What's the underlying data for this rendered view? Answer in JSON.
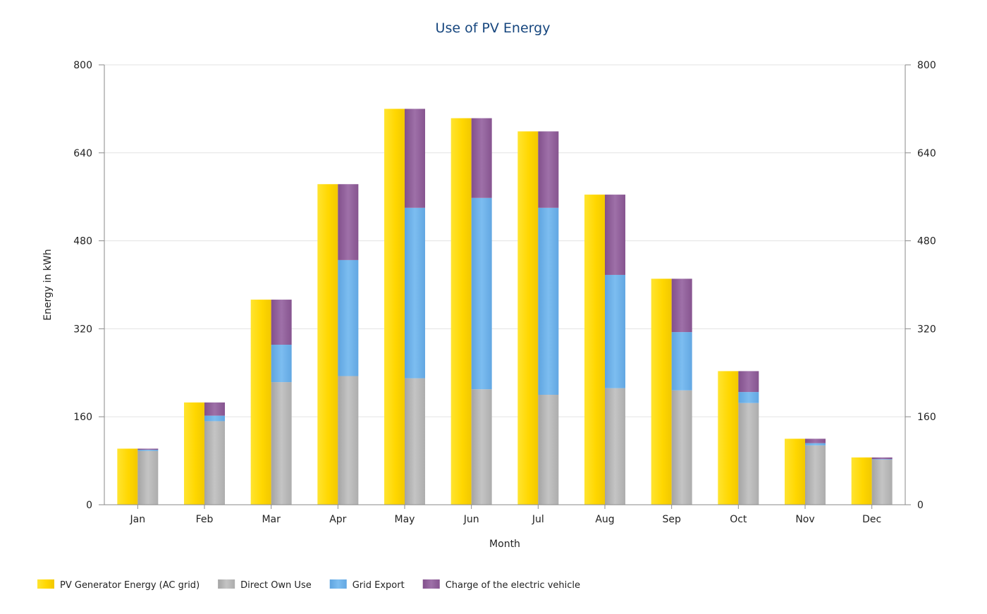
{
  "chart_data": {
    "type": "bar",
    "title": "Use of PV Energy",
    "xlabel": "Month",
    "ylabel": "Energy in kWh",
    "ylim": [
      0,
      800
    ],
    "yticks": [
      0,
      160,
      320,
      480,
      640,
      800
    ],
    "secondary_y_axis": true,
    "grid": "horizontal",
    "legend_position": "bottom-left",
    "categories": [
      "Jan",
      "Feb",
      "Mar",
      "Apr",
      "May",
      "Jun",
      "Jul",
      "Aug",
      "Sep",
      "Oct",
      "Nov",
      "Dec"
    ],
    "series": [
      {
        "name": "PV Generator Energy (AC grid)",
        "stack": "generation",
        "color": "#ffd700",
        "values": [
          102,
          186,
          373,
          583,
          720,
          703,
          679,
          564,
          411,
          243,
          120,
          86
        ]
      },
      {
        "name": "Direct Own Use",
        "stack": "usage",
        "color": "#b4b4b4",
        "values": [
          98,
          152,
          223,
          234,
          230,
          210,
          200,
          212,
          208,
          185,
          108,
          82
        ]
      },
      {
        "name": "Grid Export",
        "stack": "usage",
        "color": "#67afe8",
        "values": [
          2,
          10,
          68,
          211,
          310,
          348,
          340,
          206,
          106,
          20,
          4,
          1
        ]
      },
      {
        "name": "Charge of the electric vehicle",
        "stack": "usage",
        "color": "#8c5a96",
        "values": [
          2,
          24,
          82,
          138,
          180,
          145,
          139,
          146,
          97,
          38,
          8,
          3
        ]
      }
    ]
  }
}
